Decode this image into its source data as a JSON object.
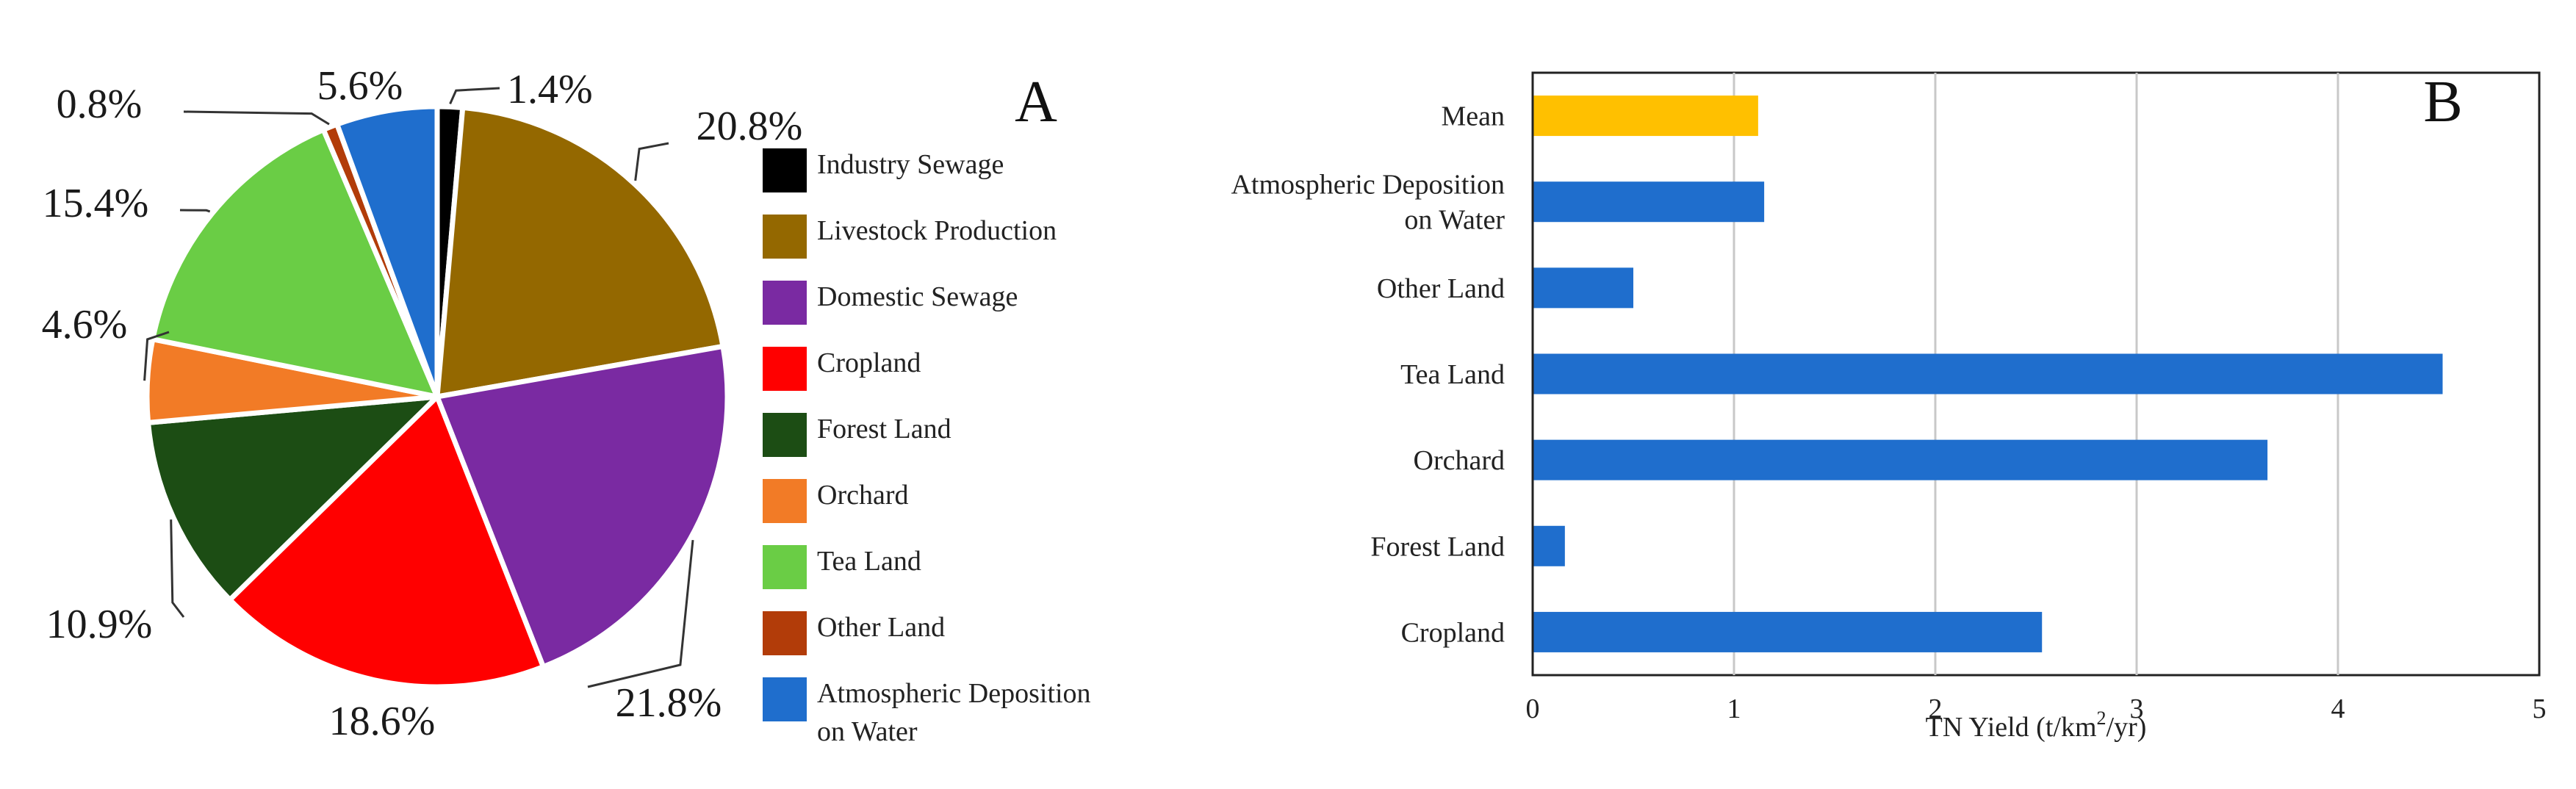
{
  "chart_data": [
    {
      "type": "pie",
      "panel_label": "A",
      "title": "",
      "slices": [
        {
          "name": "Industry Sewage",
          "value": 1.4,
          "label": "1.4%",
          "color": "#000000"
        },
        {
          "name": "Livestock Production",
          "value": 20.8,
          "label": "20.8%",
          "color": "#946800"
        },
        {
          "name": "Domestic Sewage",
          "value": 21.8,
          "label": "21.8%",
          "color": "#7a2aa2"
        },
        {
          "name": "Cropland",
          "value": 18.6,
          "label": "18.6%",
          "color": "#ff0000"
        },
        {
          "name": "Forest Land",
          "value": 10.9,
          "label": "10.9%",
          "color": "#1c4d14"
        },
        {
          "name": "Orchard",
          "value": 4.6,
          "label": "4.6%",
          "color": "#f27b26"
        },
        {
          "name": "Tea Land",
          "value": 15.4,
          "label": "15.4%",
          "color": "#6acd45"
        },
        {
          "name": "Other Land",
          "value": 0.8,
          "label": "0.8%",
          "color": "#b23c09"
        },
        {
          "name": "Atmospheric Deposition on Water",
          "value": 5.6,
          "label": "5.6%",
          "color": "#1f6ecd"
        }
      ],
      "legend": [
        {
          "text": [
            "Industry Sewage"
          ],
          "color": "#000000"
        },
        {
          "text": [
            "Livestock Production"
          ],
          "color": "#946800"
        },
        {
          "text": [
            "Domestic Sewage"
          ],
          "color": "#7a2aa2"
        },
        {
          "text": [
            "Cropland"
          ],
          "color": "#ff0000"
        },
        {
          "text": [
            "Forest Land"
          ],
          "color": "#1c4d14"
        },
        {
          "text": [
            "Orchard"
          ],
          "color": "#f27b26"
        },
        {
          "text": [
            "Tea Land"
          ],
          "color": "#6acd45"
        },
        {
          "text": [
            "Other Land"
          ],
          "color": "#b23c09"
        },
        {
          "text": [
            "Atmospheric Deposition",
            "on Water"
          ],
          "color": "#1f6ecd"
        }
      ]
    },
    {
      "type": "bar",
      "orientation": "horizontal",
      "panel_label": "B",
      "title": "",
      "categories": [
        {
          "text": [
            "Mean"
          ],
          "value": 1.12,
          "color": "#ffc000"
        },
        {
          "text": [
            "Atmospheric Deposition",
            "on Water"
          ],
          "value": 1.15,
          "color": "#1f6ecd"
        },
        {
          "text": [
            "Other Land"
          ],
          "value": 0.5,
          "color": "#1f6ecd"
        },
        {
          "text": [
            "Tea Land"
          ],
          "value": 4.52,
          "color": "#1f6ecd"
        },
        {
          "text": [
            "Orchard"
          ],
          "value": 3.65,
          "color": "#1f6ecd"
        },
        {
          "text": [
            "Forest Land"
          ],
          "value": 0.16,
          "color": "#1f6ecd"
        },
        {
          "text": [
            "Cropland"
          ],
          "value": 2.53,
          "color": "#1f6ecd"
        }
      ],
      "xlabel": {
        "prefix": "TN Yield (t/km",
        "sup": "2",
        "suffix": "/yr)"
      },
      "xlim": [
        0,
        5
      ],
      "xticks": [
        "0",
        "1",
        "2",
        "3",
        "4",
        "5"
      ],
      "grid": "vertical"
    }
  ]
}
